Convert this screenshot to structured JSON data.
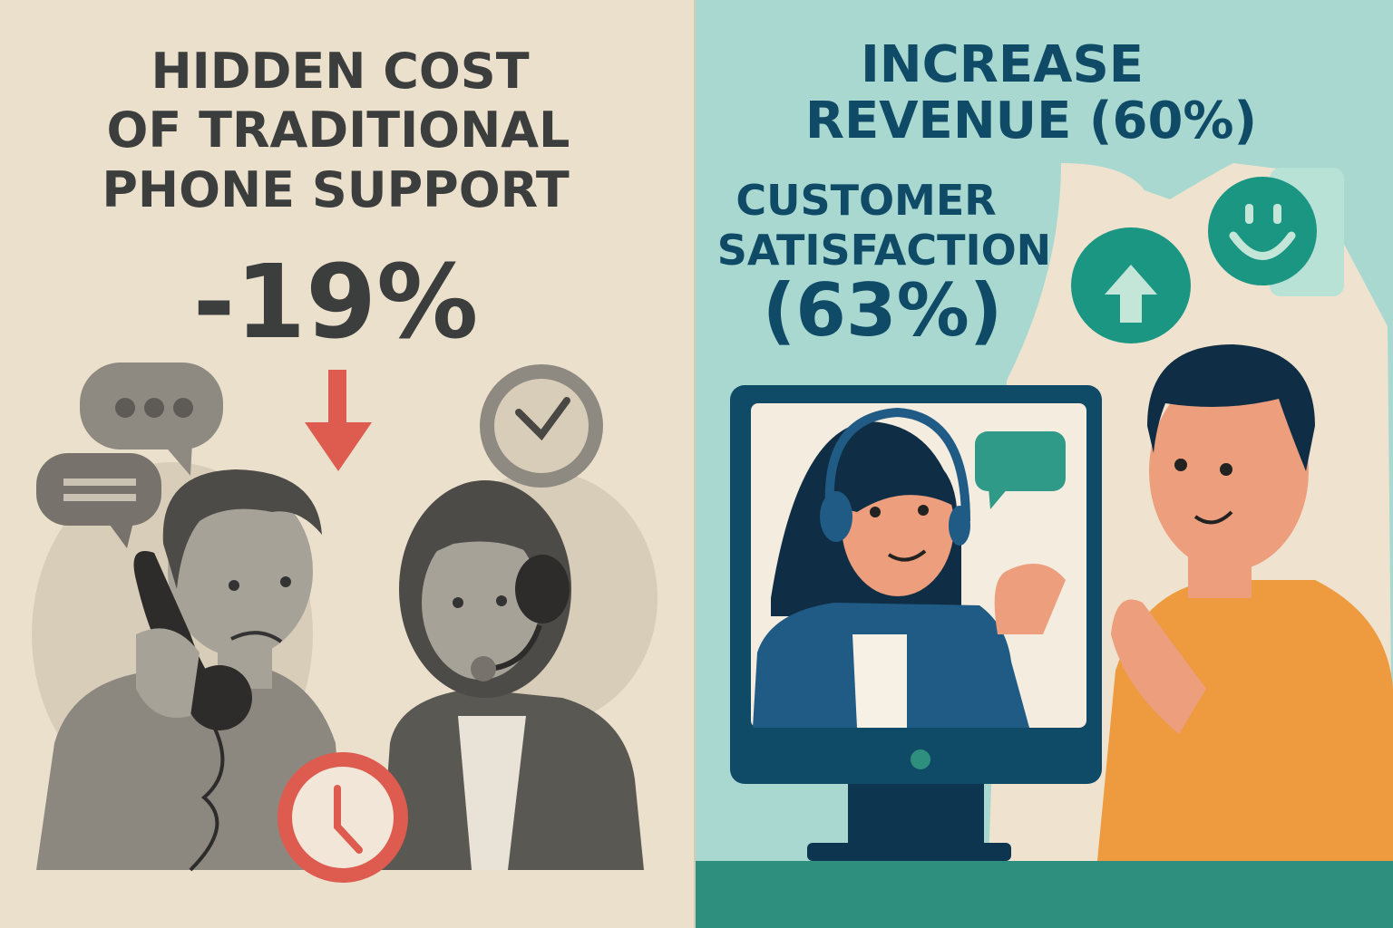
{
  "left_panel": {
    "title_lines": [
      "HIDDEN COST",
      "OF TRADITIONAL",
      "PHONE SUPPORT"
    ],
    "stat": "-19%",
    "icons": [
      "speech-bubble-dots-icon",
      "speech-bubble-lines-icon",
      "down-arrow-icon",
      "clock-icon",
      "red-clock-icon"
    ],
    "colors": {
      "background": "#ebe0cc",
      "text": "#3b3e3d",
      "accent": "#dd5b4f"
    }
  },
  "right_panel": {
    "headline_lines": [
      "INCREASE",
      "REVENUE (60%)"
    ],
    "satisfaction_lines": [
      "CUSTOMER",
      "SATISFACTION",
      "(63%)"
    ],
    "icons": [
      "up-arrow-icon",
      "smiley-icon",
      "chat-bubble-icon",
      "monitor-icon"
    ],
    "colors": {
      "background": "#a8d8d0",
      "text": "#0f4a66",
      "accent": "#1a9683",
      "shirt": "#ee9a3f"
    }
  }
}
